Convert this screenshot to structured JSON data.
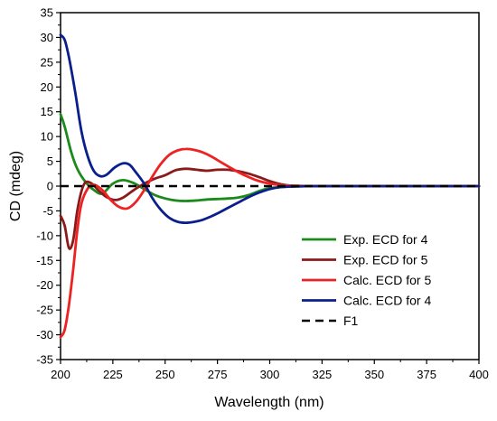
{
  "chart_data": {
    "type": "line",
    "xlabel": "Wavelength (nm)",
    "ylabel": "CD (mdeg)",
    "xlim": [
      200,
      400
    ],
    "ylim": [
      -35,
      35
    ],
    "xticks": [
      200,
      225,
      250,
      275,
      300,
      325,
      350,
      375,
      400
    ],
    "yticks": [
      35,
      30,
      25,
      20,
      15,
      10,
      5,
      0,
      -5,
      -10,
      -15,
      -20,
      -25,
      -30,
      -35
    ],
    "grid": false,
    "legend_position": "bottom-right",
    "series": [
      {
        "name": "Exp. ECD for 4",
        "color": "#1a8a1a",
        "style": "solid",
        "x": [
          200,
          202,
          205,
          208,
          212,
          216,
          220,
          225,
          230,
          235,
          240,
          245,
          250,
          255,
          260,
          265,
          270,
          275,
          280,
          285,
          290,
          295,
          300,
          310,
          320,
          340,
          360,
          380,
          400
        ],
        "y": [
          14.5,
          12,
          7,
          3.5,
          0.8,
          -0.8,
          -1.5,
          0.5,
          1.2,
          0.6,
          -0.6,
          -1.8,
          -2.5,
          -2.9,
          -3.0,
          -2.9,
          -2.7,
          -2.6,
          -2.5,
          -2.3,
          -1.8,
          -1.0,
          -0.4,
          -0.1,
          0,
          0,
          0,
          0,
          0
        ]
      },
      {
        "name": "Exp. ECD for 5",
        "color": "#8b1a1a",
        "style": "solid",
        "x": [
          200,
          202,
          204,
          206,
          208,
          210,
          212,
          215,
          218,
          222,
          226,
          230,
          235,
          240,
          245,
          250,
          255,
          260,
          265,
          270,
          275,
          280,
          285,
          290,
          295,
          300,
          305,
          310,
          320,
          340,
          360,
          380,
          400
        ],
        "y": [
          -6,
          -8,
          -12.5,
          -11,
          -5,
          -1,
          0.8,
          0.5,
          -0.8,
          -2.2,
          -2.8,
          -2.3,
          -0.8,
          0.5,
          1.5,
          2.2,
          3.2,
          3.5,
          3.3,
          3.1,
          3.3,
          3.3,
          3.0,
          2.5,
          1.8,
          1.0,
          0.4,
          0.1,
          0,
          0,
          0,
          0,
          0
        ]
      },
      {
        "name": "Calc. ECD for 5",
        "color": "#ee2222",
        "style": "solid",
        "x": [
          200,
          202,
          204,
          206,
          208,
          210,
          213,
          216,
          220,
          224,
          228,
          232,
          236,
          240,
          244,
          248,
          252,
          256,
          260,
          264,
          268,
          272,
          276,
          280,
          285,
          290,
          295,
          300,
          305,
          310,
          320,
          340,
          360,
          380,
          400
        ],
        "y": [
          -30.5,
          -29,
          -24,
          -17,
          -9,
          -3.5,
          -0.5,
          0.3,
          -0.8,
          -2.8,
          -4.2,
          -4.5,
          -3.2,
          -0.8,
          2.0,
          4.5,
          6.3,
          7.2,
          7.5,
          7.3,
          6.8,
          6.0,
          5.0,
          4.0,
          2.8,
          1.8,
          1.0,
          0.5,
          0.2,
          0.1,
          0,
          0,
          0,
          0,
          0
        ]
      },
      {
        "name": "Calc. ECD for 4",
        "color": "#0a1e8c",
        "style": "solid",
        "x": [
          200,
          202,
          204,
          207,
          210,
          213,
          216,
          219,
          222,
          226,
          230,
          233,
          236,
          240,
          244,
          248,
          252,
          256,
          260,
          264,
          268,
          272,
          276,
          280,
          285,
          290,
          295,
          300,
          305,
          310,
          320,
          340,
          360,
          380,
          400
        ],
        "y": [
          30.5,
          29.5,
          26,
          19,
          11,
          6,
          3,
          2,
          2.3,
          3.8,
          4.6,
          4.3,
          2.8,
          0.5,
          -2.5,
          -4.8,
          -6.4,
          -7.2,
          -7.4,
          -7.2,
          -6.8,
          -6.1,
          -5.3,
          -4.4,
          -3.3,
          -2.2,
          -1.3,
          -0.6,
          -0.2,
          -0.1,
          0,
          0,
          0,
          0,
          0
        ]
      },
      {
        "name": "F1",
        "color": "#000000",
        "style": "dashed",
        "x": [
          200,
          400
        ],
        "y": [
          0,
          0
        ]
      }
    ]
  }
}
